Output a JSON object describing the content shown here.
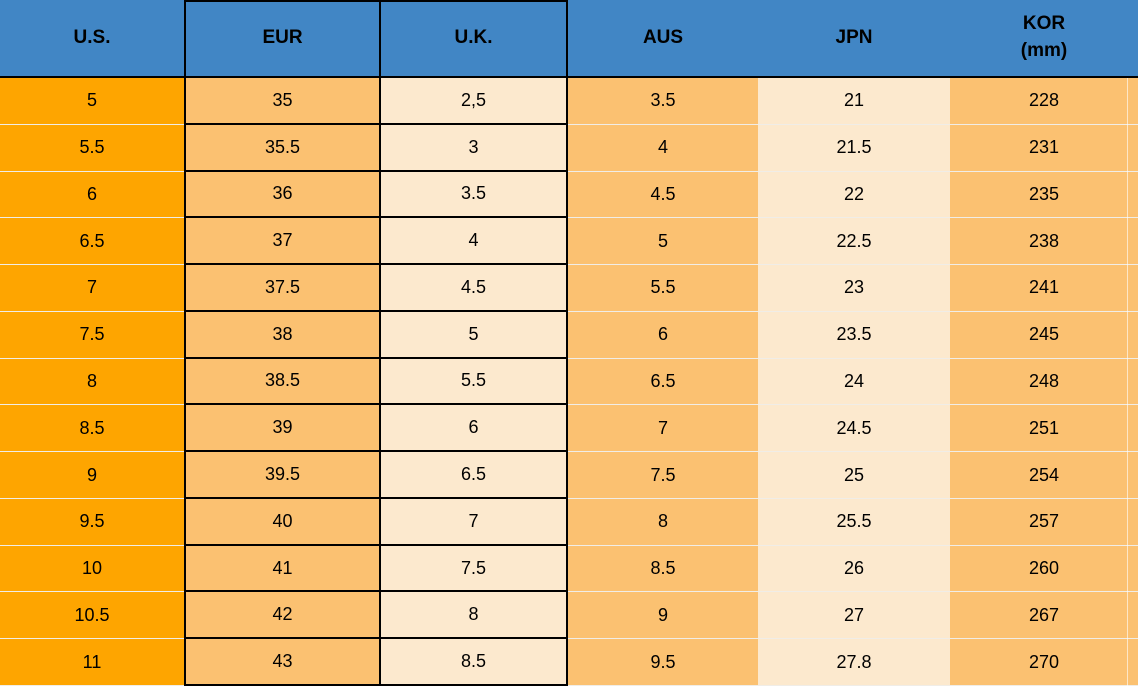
{
  "colors": {
    "header_blue": "#4186C5",
    "orange": "#FEA500",
    "light_orange": "#FBC171",
    "cream": "#FCE9CE",
    "border_black": "#000000",
    "separator": "#F0EDE7"
  },
  "table": {
    "columns": [
      {
        "label": "U.S."
      },
      {
        "label": "EUR"
      },
      {
        "label": "U.K."
      },
      {
        "label": "AUS"
      },
      {
        "label": "JPN"
      },
      {
        "label": "KOR",
        "sublabel": "(mm)"
      }
    ],
    "rows": [
      [
        "5",
        "35",
        "2,5",
        "3.5",
        "21",
        "228"
      ],
      [
        "5.5",
        "35.5",
        "3",
        "4",
        "21.5",
        "231"
      ],
      [
        "6",
        "36",
        "3.5",
        "4.5",
        "22",
        "235"
      ],
      [
        "6.5",
        "37",
        "4",
        "5",
        "22.5",
        "238"
      ],
      [
        "7",
        "37.5",
        "4.5",
        "5.5",
        "23",
        "241"
      ],
      [
        "7.5",
        "38",
        "5",
        "6",
        "23.5",
        "245"
      ],
      [
        "8",
        "38.5",
        "5.5",
        "6.5",
        "24",
        "248"
      ],
      [
        "8.5",
        "39",
        "6",
        "7",
        "24.5",
        "251"
      ],
      [
        "9",
        "39.5",
        "6.5",
        "7.5",
        "25",
        "254"
      ],
      [
        "9.5",
        "40",
        "7",
        "8",
        "25.5",
        "257"
      ],
      [
        "10",
        "41",
        "7.5",
        "8.5",
        "26",
        "260"
      ],
      [
        "10.5",
        "42",
        "8",
        "9",
        "27",
        "267"
      ],
      [
        "11",
        "43",
        "8.5",
        "9.5",
        "27.8",
        "270"
      ]
    ]
  },
  "chart_data": {
    "type": "table",
    "columns": [
      "U.S.",
      "EUR",
      "U.K.",
      "AUS",
      "JPN",
      "KOR (mm)"
    ],
    "rows": [
      [
        "5",
        "35",
        "2,5",
        "3.5",
        "21",
        "228"
      ],
      [
        "5.5",
        "35.5",
        "3",
        "4",
        "21.5",
        "231"
      ],
      [
        "6",
        "36",
        "3.5",
        "4.5",
        "22",
        "235"
      ],
      [
        "6.5",
        "37",
        "4",
        "5",
        "22.5",
        "238"
      ],
      [
        "7",
        "37.5",
        "4.5",
        "5.5",
        "23",
        "241"
      ],
      [
        "7.5",
        "38",
        "5",
        "6",
        "23.5",
        "245"
      ],
      [
        "8",
        "38.5",
        "5.5",
        "6.5",
        "24",
        "248"
      ],
      [
        "8.5",
        "39",
        "6",
        "7",
        "24.5",
        "251"
      ],
      [
        "9",
        "39.5",
        "6.5",
        "7.5",
        "25",
        "254"
      ],
      [
        "9.5",
        "40",
        "7",
        "8",
        "25.5",
        "257"
      ],
      [
        "10",
        "41",
        "7.5",
        "8.5",
        "26",
        "260"
      ],
      [
        "10.5",
        "42",
        "8",
        "9",
        "27",
        "267"
      ],
      [
        "11",
        "43",
        "8.5",
        "9.5",
        "27.8",
        "270"
      ]
    ]
  }
}
